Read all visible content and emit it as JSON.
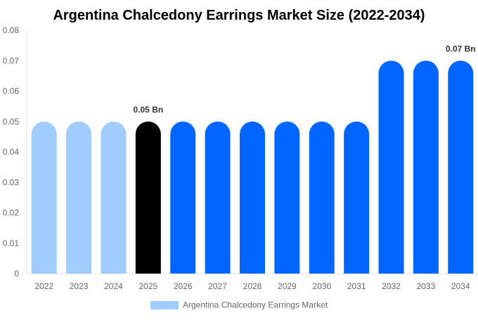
{
  "chart_data": {
    "type": "bar",
    "title": "Argentina Chalcedony Earrings Market Size (2022-2034)",
    "xlabel": "",
    "ylabel": "",
    "categories": [
      "2022",
      "2023",
      "2024",
      "2025",
      "2026",
      "2027",
      "2028",
      "2029",
      "2030",
      "2031",
      "2032",
      "2033",
      "2034"
    ],
    "series": [
      {
        "name": "Argentina Chalcedony Earrings Market",
        "values": [
          0.05,
          0.05,
          0.05,
          0.05,
          0.05,
          0.05,
          0.05,
          0.05,
          0.05,
          0.05,
          0.07,
          0.07,
          0.07
        ]
      }
    ],
    "bar_colors": [
      "#a0cdfd",
      "#a0cdfd",
      "#a0cdfd",
      "#000000",
      "#0066ff",
      "#0066ff",
      "#0066ff",
      "#0066ff",
      "#0066ff",
      "#0066ff",
      "#0066ff",
      "#0066ff",
      "#0066ff"
    ],
    "data_labels": [
      {
        "category": "2025",
        "text": "0.05 Bn"
      },
      {
        "category": "2034",
        "text": "0.07 Bn"
      }
    ],
    "ylim": [
      0,
      0.08
    ],
    "yticks": [
      "0",
      "0.01",
      "0.02",
      "0.03",
      "0.04",
      "0.05",
      "0.06",
      "0.07",
      "0.08"
    ],
    "grid": false,
    "legend": {
      "position": "bottom",
      "color": "#a0cdfd"
    }
  }
}
